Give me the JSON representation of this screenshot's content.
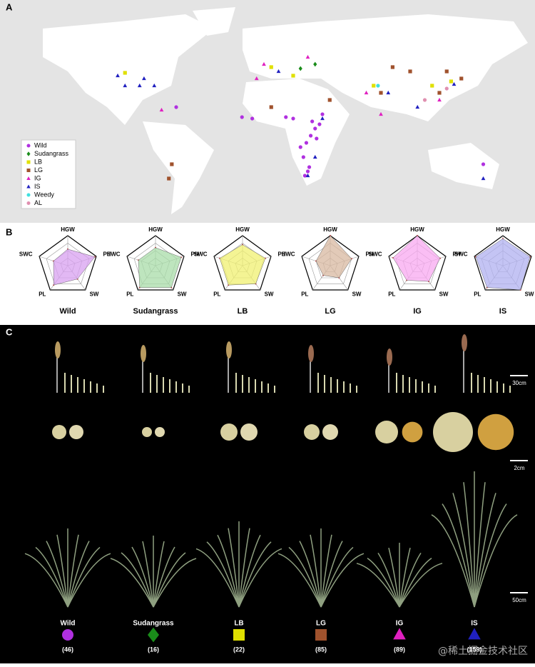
{
  "panel_labels": [
    "A",
    "B",
    "C"
  ],
  "map": {
    "series": [
      {
        "name": "Wild",
        "color": "#b030e0",
        "shape": "circle",
        "lon": [
          33,
          35,
          32,
          30,
          28,
          31,
          20,
          15,
          -8,
          -15,
          40,
          38,
          29,
          27,
          150,
          -60,
          36,
          25
        ],
        "lat": [
          10,
          5,
          0,
          -25,
          -28,
          -22,
          12,
          13,
          12,
          13,
          15,
          8,
          -5,
          -15,
          -20,
          20,
          -2,
          -8
        ]
      },
      {
        "name": "Sudangrass",
        "color": "#1a8c1a",
        "shape": "diamond",
        "lon": [
          25,
          35
        ],
        "lat": [
          47,
          50
        ]
      },
      {
        "name": "LB",
        "color": "#e0e000",
        "shape": "square",
        "lon": [
          -95,
          5,
          20,
          75,
          115,
          128
        ],
        "lat": [
          44,
          48,
          42,
          35,
          35,
          38
        ]
      },
      {
        "name": "LG",
        "color": "#a0522d",
        "shape": "square",
        "lon": [
          45,
          80,
          100,
          120,
          125,
          135,
          -65,
          -63,
          5,
          88
        ],
        "lat": [
          25,
          30,
          45,
          30,
          45,
          40,
          -30,
          -20,
          20,
          48
        ]
      },
      {
        "name": "IG",
        "color": "#e020c0",
        "shape": "triangle",
        "lon": [
          -5,
          0,
          70,
          -70,
          80,
          120,
          30
        ],
        "lat": [
          40,
          50,
          30,
          18,
          15,
          25,
          55
        ]
      },
      {
        "name": "IS",
        "color": "#2020c0",
        "shape": "triangle",
        "lon": [
          -100,
          -82,
          -95,
          -85,
          10,
          35,
          30,
          40,
          85,
          105,
          130,
          150,
          -75
        ],
        "lat": [
          42,
          40,
          35,
          35,
          45,
          -15,
          -28,
          12,
          30,
          20,
          36,
          -30,
          35
        ]
      },
      {
        "name": "Weedy",
        "color": "#40e0e0",
        "shape": "circle",
        "lon": [
          78
        ],
        "lat": [
          35
        ]
      },
      {
        "name": "AL",
        "color": "#e090b0",
        "shape": "circle",
        "lon": [
          125,
          110
        ],
        "lat": [
          33,
          25
        ]
      }
    ]
  },
  "radar": {
    "axes": [
      "HGW",
      "PH",
      "SW",
      "PL",
      "SWC"
    ],
    "rlim": [
      0,
      1
    ],
    "rticks": [
      0.25,
      0.5,
      0.75,
      1
    ],
    "groups": [
      {
        "name": "Wild",
        "color": "#d8a0f0",
        "values": [
          0.55,
          0.95,
          0.55,
          0.8,
          0.5
        ]
      },
      {
        "name": "Sudangrass",
        "color": "#a8dca8",
        "values": [
          0.6,
          0.9,
          0.9,
          0.9,
          0.6
        ]
      },
      {
        "name": "LB",
        "color": "#f0f070",
        "values": [
          0.7,
          0.8,
          0.75,
          0.8,
          0.8
        ]
      },
      {
        "name": "LG",
        "color": "#d8b8a0",
        "values": [
          1,
          0.75,
          0.5,
          0.4,
          0.5
        ]
      },
      {
        "name": "IG",
        "color": "#f8a8f0",
        "values": [
          1,
          0.8,
          0.65,
          0.6,
          0.85
        ]
      },
      {
        "name": "IS",
        "color": "#b0b0f0",
        "values": [
          0.9,
          0.95,
          1,
          0.9,
          0.95
        ]
      }
    ]
  },
  "panel_c": {
    "scale_bars": [
      "30cm",
      "2cm",
      "50cm"
    ],
    "groups": [
      {
        "name": "Wild",
        "count": "(46)"
      },
      {
        "name": "Sudangrass",
        "count": "(16)"
      },
      {
        "name": "LB",
        "count": "(22)"
      },
      {
        "name": "LG",
        "count": "(85)"
      },
      {
        "name": "IG",
        "count": "(89)"
      },
      {
        "name": "IS",
        "count": "(159)"
      }
    ]
  },
  "watermark": "@稀土掘金技术社区"
}
